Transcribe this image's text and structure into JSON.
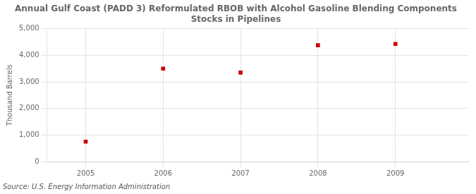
{
  "chart_data": {
    "type": "scatter",
    "title": "Annual Gulf Coast (PADD 3) Reformulated RBOB with Alcohol Gasoline Blending Components\nStocks in Pipelines",
    "ylabel": "Thousand Barrels",
    "source": "Source: U.S. Energy Information Administration",
    "x": [
      2005,
      2006,
      2007,
      2008,
      2009
    ],
    "values": [
      750,
      3500,
      3350,
      4380,
      4430
    ],
    "color": "#cc0000",
    "marker": "square",
    "xlim": [
      2004.5,
      2009.95
    ],
    "xticks": [
      2005,
      2006,
      2007,
      2008,
      2009
    ],
    "ylim": [
      0,
      5000
    ],
    "yticks": [
      0,
      {
        "value": 1000,
        "label": "1,000"
      },
      {
        "value": 2000,
        "label": "2,000"
      },
      {
        "value": 3000,
        "label": "3,000"
      },
      {
        "value": 4000,
        "label": "4,000"
      },
      {
        "value": 5000,
        "label": "5,000"
      }
    ],
    "grid": true
  }
}
